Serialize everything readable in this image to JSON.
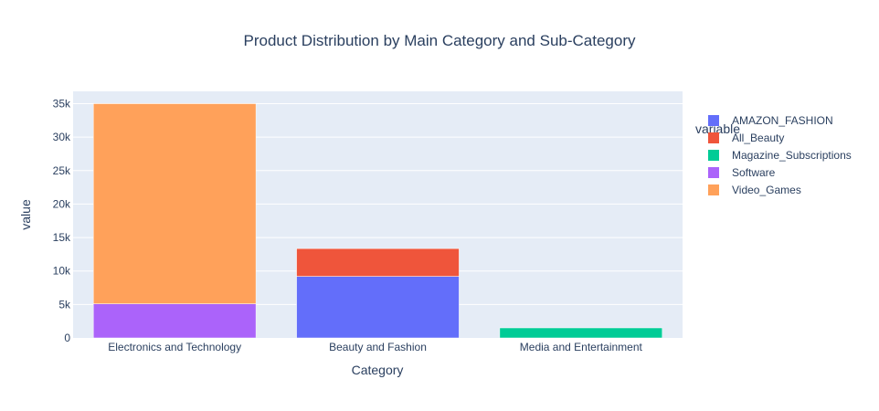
{
  "chart_data": {
    "type": "bar",
    "stacked": true,
    "title": "Product Distribution by Main Category and Sub-Category",
    "xlabel": "Category",
    "ylabel": "value",
    "categories": [
      "Electronics and Technology",
      "Beauty and Fashion",
      "Media and Entertainment"
    ],
    "ylim": [
      0,
      36842
    ],
    "yticks": [
      0,
      5000,
      10000,
      15000,
      20000,
      25000,
      30000,
      35000
    ],
    "ytick_labels": [
      "0",
      "5k",
      "10k",
      "15k",
      "20k",
      "25k",
      "30k",
      "35k"
    ],
    "grid": true,
    "legend": {
      "title": "variable",
      "placement": "right"
    },
    "series": [
      {
        "name": "AMAZON_FASHION",
        "color": "#636efa",
        "values": [
          0,
          9200,
          0
        ]
      },
      {
        "name": "All_Beauty",
        "color": "#ef553b",
        "values": [
          0,
          4150,
          0
        ]
      },
      {
        "name": "Magazine_Subscriptions",
        "color": "#00cc96",
        "values": [
          0,
          0,
          1500
        ]
      },
      {
        "name": "Software",
        "color": "#ab63fa",
        "values": [
          5100,
          0,
          0
        ]
      },
      {
        "name": "Video_Games",
        "color": "#ffa15a",
        "values": [
          29900,
          0,
          0
        ]
      }
    ]
  }
}
